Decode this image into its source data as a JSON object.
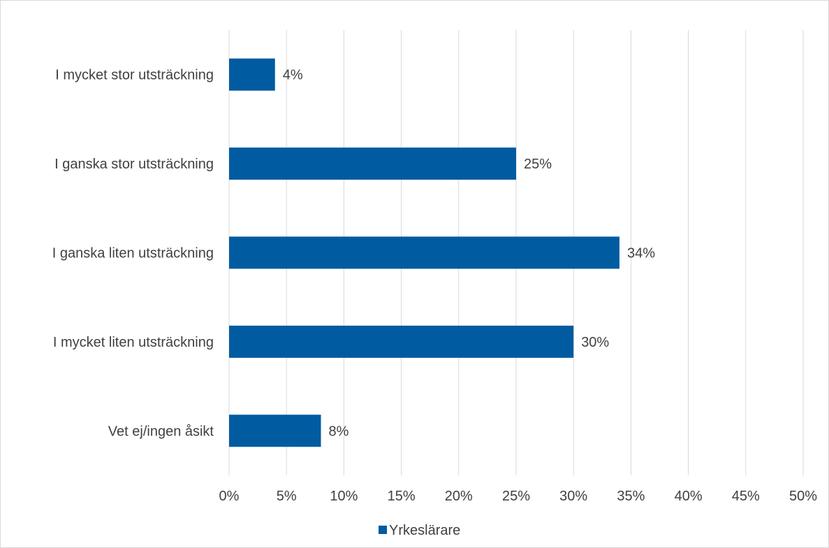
{
  "chart_data": {
    "type": "bar",
    "orientation": "horizontal",
    "categories": [
      "I mycket stor utsträckning",
      "I ganska stor utsträckning",
      "I ganska liten utsträckning",
      "I mycket liten utsträckning",
      "Vet ej/ingen åsikt"
    ],
    "series": [
      {
        "name": "Yrkeslärare",
        "values": [
          4,
          25,
          34,
          30,
          8
        ],
        "data_labels": [
          "4%",
          "25%",
          "34%",
          "30%",
          "8%"
        ],
        "color": "#005ba1"
      }
    ],
    "xlim": [
      0,
      50
    ],
    "x_ticks": [
      0,
      5,
      10,
      15,
      20,
      25,
      30,
      35,
      40,
      45,
      50
    ],
    "x_tick_labels": [
      "0%",
      "5%",
      "10%",
      "15%",
      "20%",
      "25%",
      "30%",
      "35%",
      "40%",
      "45%",
      "50%"
    ],
    "grid": true,
    "grid_color": "#d9d9d9",
    "legend": "bottom",
    "title": "",
    "xlabel": "",
    "ylabel": ""
  }
}
